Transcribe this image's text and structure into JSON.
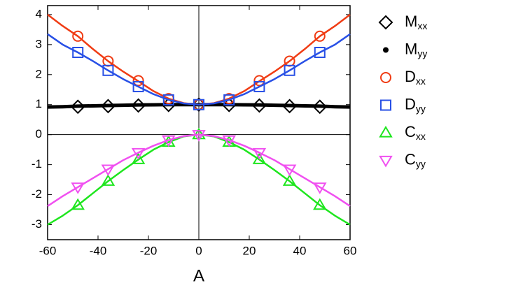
{
  "chart_data": {
    "type": "line",
    "x_label": "A",
    "xlim": [
      -60,
      60
    ],
    "xticks": [
      -60,
      -40,
      -20,
      0,
      20,
      40,
      60
    ],
    "ylim": [
      -3.5,
      4.3
    ],
    "yticks": [
      -3,
      -2,
      -1,
      0,
      1,
      2,
      3,
      4
    ],
    "zero_lines": true,
    "x_markers": [
      -48,
      -36,
      -24,
      -12,
      0,
      12,
      24,
      36,
      48
    ],
    "x_line": [
      -60,
      -54,
      -48,
      -42,
      -36,
      -30,
      -24,
      -18,
      -12,
      -6,
      0,
      6,
      12,
      18,
      24,
      30,
      36,
      42,
      48,
      54,
      60
    ],
    "series": [
      {
        "name": "M",
        "subscript": "xx",
        "color": "#000000",
        "marker": "diamond",
        "values": [
          0.93,
          0.95,
          0.97,
          0.99,
          1.0,
          0.99,
          0.97,
          0.95,
          0.93
        ]
      },
      {
        "name": "M",
        "subscript": "yy",
        "color": "#000000",
        "marker": "dot",
        "line_values": [
          0.92,
          0.93,
          0.95,
          0.96,
          0.97,
          0.98,
          0.99,
          0.995,
          1.0,
          1.0,
          1.0,
          1.0,
          1.0,
          0.995,
          0.99,
          0.98,
          0.97,
          0.96,
          0.95,
          0.93,
          0.92
        ]
      },
      {
        "name": "D",
        "subscript": "xx",
        "color": "#f03c14",
        "marker": "circle",
        "values": [
          3.28,
          2.45,
          1.8,
          1.2,
          1.0,
          1.2,
          1.8,
          2.45,
          3.28
        ],
        "line_values": [
          4.0,
          3.62,
          3.28,
          2.85,
          2.45,
          2.1,
          1.78,
          1.45,
          1.2,
          1.05,
          1.0,
          1.05,
          1.2,
          1.45,
          1.78,
          2.1,
          2.45,
          2.85,
          3.28,
          3.62,
          4.0
        ]
      },
      {
        "name": "D",
        "subscript": "yy",
        "color": "#2850e6",
        "marker": "square",
        "values": [
          2.74,
          2.14,
          1.6,
          1.16,
          1.0,
          1.16,
          1.6,
          2.14,
          2.74
        ],
        "line_values": [
          3.35,
          3.0,
          2.74,
          2.45,
          2.14,
          1.85,
          1.6,
          1.35,
          1.16,
          1.04,
          1.0,
          1.04,
          1.16,
          1.35,
          1.6,
          1.85,
          2.14,
          2.45,
          2.74,
          3.0,
          3.35
        ]
      },
      {
        "name": "C",
        "subscript": "xx",
        "color": "#1ee61e",
        "marker": "triangle-up",
        "values": [
          -2.35,
          -1.55,
          -0.83,
          -0.25,
          0.0,
          -0.25,
          -0.83,
          -1.55,
          -2.35
        ],
        "line_values": [
          -3.0,
          -2.7,
          -2.35,
          -1.95,
          -1.55,
          -1.18,
          -0.83,
          -0.5,
          -0.25,
          -0.06,
          0.0,
          -0.06,
          -0.25,
          -0.5,
          -0.83,
          -1.18,
          -1.55,
          -1.95,
          -2.35,
          -2.7,
          -3.0
        ]
      },
      {
        "name": "C",
        "subscript": "yy",
        "color": "#f050f0",
        "marker": "triangle-down",
        "values": [
          -1.75,
          -1.15,
          -0.6,
          -0.18,
          0.0,
          -0.18,
          -0.6,
          -1.15,
          -1.75
        ],
        "line_values": [
          -2.38,
          -2.05,
          -1.75,
          -1.45,
          -1.15,
          -0.85,
          -0.6,
          -0.37,
          -0.18,
          -0.05,
          0.0,
          -0.05,
          -0.18,
          -0.37,
          -0.6,
          -0.85,
          -1.15,
          -1.45,
          -1.75,
          -2.05,
          -2.38
        ]
      }
    ]
  }
}
